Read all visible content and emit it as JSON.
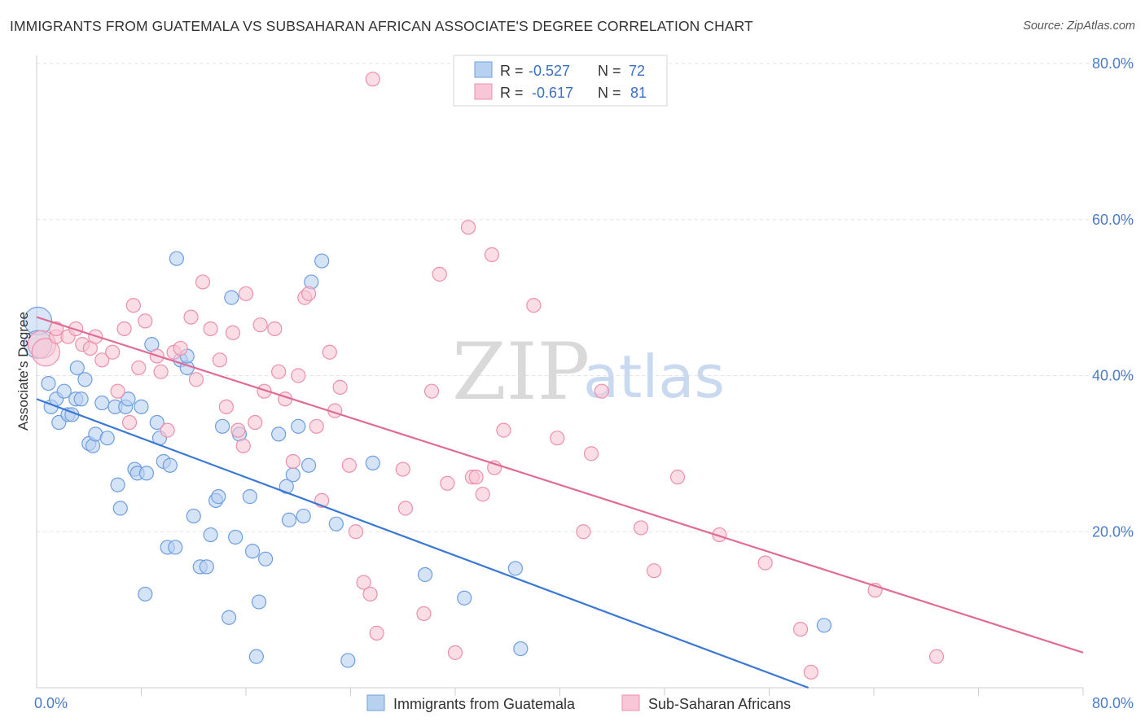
{
  "title": "IMMIGRANTS FROM GUATEMALA VS SUBSAHARAN AFRICAN ASSOCIATE'S DEGREE CORRELATION CHART",
  "source": "Source: ZipAtlas.com",
  "watermark": {
    "zip": "ZIP",
    "atlas": "atlas"
  },
  "chart_data": {
    "type": "scatter",
    "ylabel": "Associate's Degree",
    "x_ticks": [
      "0.0%",
      "80.0%"
    ],
    "y_ticks": [
      "20.0%",
      "40.0%",
      "60.0%",
      "80.0%"
    ],
    "xlim": [
      0,
      0.8
    ],
    "ylim": [
      0,
      0.8
    ],
    "grid": "horizontal-dashed",
    "legend_top": [
      {
        "r_label": "R =",
        "r_value": "-0.527",
        "n_label": "N =",
        "n_value": "72"
      },
      {
        "r_label": "R =",
        "r_value": "-0.617",
        "n_label": "N =",
        "n_value": "81"
      }
    ],
    "series": [
      {
        "name": "Immigrants from Guatemala",
        "color": "#6d9ee0",
        "fill": "#b9d1f1",
        "trend": {
          "x0": 0.0,
          "y0": 0.37,
          "x1": 0.59,
          "y1": 0.0,
          "color": "#3a78d4"
        },
        "points": [
          [
            0.001,
            0.47
          ],
          [
            0.001,
            0.44
          ],
          [
            0.009,
            0.39
          ],
          [
            0.011,
            0.36
          ],
          [
            0.015,
            0.37
          ],
          [
            0.017,
            0.34
          ],
          [
            0.021,
            0.38
          ],
          [
            0.024,
            0.35
          ],
          [
            0.027,
            0.35
          ],
          [
            0.03,
            0.37
          ],
          [
            0.031,
            0.41
          ],
          [
            0.034,
            0.37
          ],
          [
            0.037,
            0.395
          ],
          [
            0.04,
            0.313
          ],
          [
            0.043,
            0.31
          ],
          [
            0.045,
            0.325
          ],
          [
            0.05,
            0.365
          ],
          [
            0.054,
            0.32
          ],
          [
            0.06,
            0.36
          ],
          [
            0.062,
            0.26
          ],
          [
            0.064,
            0.23
          ],
          [
            0.068,
            0.36
          ],
          [
            0.07,
            0.37
          ],
          [
            0.075,
            0.28
          ],
          [
            0.077,
            0.275
          ],
          [
            0.08,
            0.36
          ],
          [
            0.084,
            0.275
          ],
          [
            0.083,
            0.12
          ],
          [
            0.088,
            0.44
          ],
          [
            0.092,
            0.34
          ],
          [
            0.094,
            0.32
          ],
          [
            0.097,
            0.29
          ],
          [
            0.1,
            0.18
          ],
          [
            0.102,
            0.285
          ],
          [
            0.106,
            0.18
          ],
          [
            0.107,
            0.55
          ],
          [
            0.11,
            0.42
          ],
          [
            0.115,
            0.41
          ],
          [
            0.12,
            0.22
          ],
          [
            0.125,
            0.155
          ],
          [
            0.13,
            0.155
          ],
          [
            0.133,
            0.196
          ],
          [
            0.137,
            0.24
          ],
          [
            0.139,
            0.245
          ],
          [
            0.142,
            0.335
          ],
          [
            0.147,
            0.09
          ],
          [
            0.149,
            0.5
          ],
          [
            0.152,
            0.193
          ],
          [
            0.155,
            0.325
          ],
          [
            0.163,
            0.245
          ],
          [
            0.165,
            0.175
          ],
          [
            0.168,
            0.04
          ],
          [
            0.17,
            0.11
          ],
          [
            0.175,
            0.165
          ],
          [
            0.185,
            0.325
          ],
          [
            0.191,
            0.258
          ],
          [
            0.193,
            0.215
          ],
          [
            0.196,
            0.273
          ],
          [
            0.2,
            0.335
          ],
          [
            0.204,
            0.22
          ],
          [
            0.208,
            0.285
          ],
          [
            0.21,
            0.52
          ],
          [
            0.218,
            0.547
          ],
          [
            0.229,
            0.21
          ],
          [
            0.238,
            0.035
          ],
          [
            0.257,
            0.288
          ],
          [
            0.297,
            0.145
          ],
          [
            0.327,
            0.115
          ],
          [
            0.37,
            0.05
          ],
          [
            0.366,
            0.153
          ],
          [
            0.602,
            0.08
          ],
          [
            0.115,
            0.425
          ]
        ]
      },
      {
        "name": "Sub-Saharan Africans",
        "color": "#ec8fad",
        "fill": "#f8c6d6",
        "trend": {
          "x0": 0.0,
          "y0": 0.475,
          "x1": 0.8,
          "y1": 0.045,
          "color": "#e06c95"
        },
        "points": [
          [
            0.004,
            0.44
          ],
          [
            0.007,
            0.43
          ],
          [
            0.015,
            0.45
          ],
          [
            0.024,
            0.45
          ],
          [
            0.03,
            0.46
          ],
          [
            0.035,
            0.44
          ],
          [
            0.041,
            0.435
          ],
          [
            0.045,
            0.45
          ],
          [
            0.05,
            0.42
          ],
          [
            0.058,
            0.43
          ],
          [
            0.062,
            0.38
          ],
          [
            0.067,
            0.46
          ],
          [
            0.071,
            0.34
          ],
          [
            0.074,
            0.49
          ],
          [
            0.078,
            0.41
          ],
          [
            0.083,
            0.47
          ],
          [
            0.092,
            0.425
          ],
          [
            0.095,
            0.405
          ],
          [
            0.1,
            0.33
          ],
          [
            0.105,
            0.43
          ],
          [
            0.11,
            0.435
          ],
          [
            0.118,
            0.475
          ],
          [
            0.122,
            0.395
          ],
          [
            0.127,
            0.52
          ],
          [
            0.133,
            0.46
          ],
          [
            0.14,
            0.42
          ],
          [
            0.145,
            0.36
          ],
          [
            0.15,
            0.455
          ],
          [
            0.154,
            0.33
          ],
          [
            0.158,
            0.31
          ],
          [
            0.16,
            0.505
          ],
          [
            0.167,
            0.34
          ],
          [
            0.171,
            0.465
          ],
          [
            0.174,
            0.38
          ],
          [
            0.182,
            0.46
          ],
          [
            0.185,
            0.405
          ],
          [
            0.19,
            0.37
          ],
          [
            0.196,
            0.29
          ],
          [
            0.2,
            0.4
          ],
          [
            0.205,
            0.5
          ],
          [
            0.208,
            0.505
          ],
          [
            0.214,
            0.335
          ],
          [
            0.218,
            0.24
          ],
          [
            0.224,
            0.43
          ],
          [
            0.228,
            0.355
          ],
          [
            0.232,
            0.385
          ],
          [
            0.239,
            0.285
          ],
          [
            0.244,
            0.2
          ],
          [
            0.25,
            0.135
          ],
          [
            0.255,
            0.12
          ],
          [
            0.26,
            0.07
          ],
          [
            0.257,
            0.78
          ],
          [
            0.28,
            0.28
          ],
          [
            0.282,
            0.23
          ],
          [
            0.296,
            0.095
          ],
          [
            0.302,
            0.38
          ],
          [
            0.308,
            0.53
          ],
          [
            0.314,
            0.262
          ],
          [
            0.32,
            0.045
          ],
          [
            0.33,
            0.59
          ],
          [
            0.333,
            0.27
          ],
          [
            0.336,
            0.27
          ],
          [
            0.341,
            0.248
          ],
          [
            0.348,
            0.555
          ],
          [
            0.35,
            0.282
          ],
          [
            0.357,
            0.33
          ],
          [
            0.38,
            0.49
          ],
          [
            0.398,
            0.32
          ],
          [
            0.418,
            0.2
          ],
          [
            0.424,
            0.3
          ],
          [
            0.432,
            0.38
          ],
          [
            0.462,
            0.205
          ],
          [
            0.472,
            0.15
          ],
          [
            0.49,
            0.27
          ],
          [
            0.522,
            0.196
          ],
          [
            0.557,
            0.16
          ],
          [
            0.584,
            0.075
          ],
          [
            0.592,
            0.02
          ],
          [
            0.641,
            0.125
          ],
          [
            0.688,
            0.04
          ],
          [
            0.015,
            0.46
          ]
        ]
      }
    ]
  }
}
